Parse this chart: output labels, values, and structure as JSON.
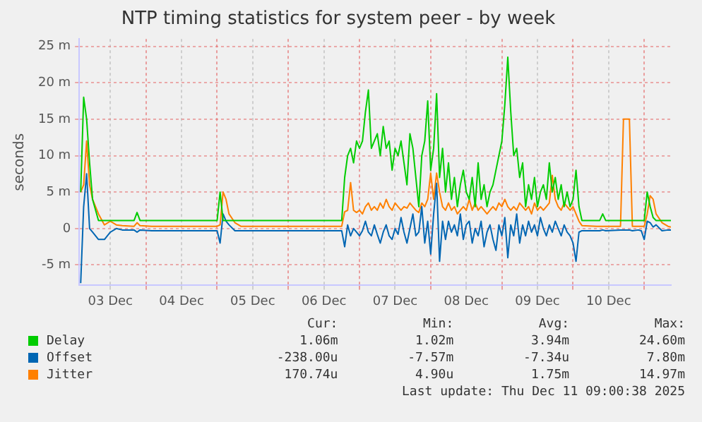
{
  "chart_data": {
    "type": "line",
    "title": "NTP timing statistics for system peer - by week",
    "ylabel": "seconds",
    "x": [
      "2025-12-03T02:00",
      "2025-12-03T03:00",
      "2025-12-03T04:00",
      "2025-12-03T05:00",
      "2025-12-03T06:00",
      "2025-12-03T08:00",
      "2025-12-03T10:00",
      "2025-12-03T12:00",
      "2025-12-03T14:00",
      "2025-12-03T16:00",
      "2025-12-03T20:00",
      "2025-12-03T21:00",
      "2025-12-03T22:00",
      "2025-12-04T02:00",
      "2025-12-04T06:00",
      "2025-12-04T12:00",
      "2025-12-04T18:00",
      "2025-12-05T00:00",
      "2025-12-05T01:00",
      "2025-12-05T02:00",
      "2025-12-05T03:00",
      "2025-12-05T04:00",
      "2025-12-05T06:00",
      "2025-12-05T08:00",
      "2025-12-05T12:00",
      "2025-12-05T18:00",
      "2025-12-06T00:00",
      "2025-12-06T06:00",
      "2025-12-06T12:00",
      "2025-12-06T18:00",
      "2025-12-06T19:00",
      "2025-12-06T20:00",
      "2025-12-06T21:00",
      "2025-12-06T22:00",
      "2025-12-06T23:00",
      "2025-12-07T00:00",
      "2025-12-07T01:00",
      "2025-12-07T02:00",
      "2025-12-07T03:00",
      "2025-12-07T04:00",
      "2025-12-07T05:00",
      "2025-12-07T06:00",
      "2025-12-07T07:00",
      "2025-12-07T08:00",
      "2025-12-07T09:00",
      "2025-12-07T10:00",
      "2025-12-07T11:00",
      "2025-12-07T12:00",
      "2025-12-07T13:00",
      "2025-12-07T14:00",
      "2025-12-07T15:00",
      "2025-12-07T16:00",
      "2025-12-07T17:00",
      "2025-12-07T18:00",
      "2025-12-07T19:00",
      "2025-12-07T20:00",
      "2025-12-07T21:00",
      "2025-12-07T22:00",
      "2025-12-07T23:00",
      "2025-12-08T00:00",
      "2025-12-08T01:00",
      "2025-12-08T02:00",
      "2025-12-08T03:00",
      "2025-12-08T04:00",
      "2025-12-08T05:00",
      "2025-12-08T06:00",
      "2025-12-08T07:00",
      "2025-12-08T08:00",
      "2025-12-08T09:00",
      "2025-12-08T10:00",
      "2025-12-08T11:00",
      "2025-12-08T12:00",
      "2025-12-08T13:00",
      "2025-12-08T14:00",
      "2025-12-08T15:00",
      "2025-12-08T16:00",
      "2025-12-08T17:00",
      "2025-12-08T18:00",
      "2025-12-08T19:00",
      "2025-12-08T20:00",
      "2025-12-08T21:00",
      "2025-12-08T22:00",
      "2025-12-08T23:00",
      "2025-12-09T00:00",
      "2025-12-09T01:00",
      "2025-12-09T02:00",
      "2025-12-09T03:00",
      "2025-12-09T04:00",
      "2025-12-09T05:00",
      "2025-12-09T06:00",
      "2025-12-09T07:00",
      "2025-12-09T08:00",
      "2025-12-09T09:00",
      "2025-12-09T10:00",
      "2025-12-09T11:00",
      "2025-12-09T12:00",
      "2025-12-09T13:00",
      "2025-12-09T14:00",
      "2025-12-09T15:00",
      "2025-12-09T16:00",
      "2025-12-09T17:00",
      "2025-12-09T18:00",
      "2025-12-09T19:00",
      "2025-12-09T20:00",
      "2025-12-09T21:00",
      "2025-12-09T22:00",
      "2025-12-09T23:00",
      "2025-12-10T00:00",
      "2025-12-10T01:00",
      "2025-12-10T02:00",
      "2025-12-10T03:00",
      "2025-12-10T08:00",
      "2025-12-10T09:00",
      "2025-12-10T10:00",
      "2025-12-10T11:00",
      "2025-12-10T16:00",
      "2025-12-10T17:00",
      "2025-12-10T18:00",
      "2025-12-10T19:00",
      "2025-12-10T20:00",
      "2025-12-10T22:00",
      "2025-12-10T23:00",
      "2025-12-11T00:00",
      "2025-12-11T01:00",
      "2025-12-11T02:00",
      "2025-12-11T03:00",
      "2025-12-11T04:00",
      "2025-12-11T06:00",
      "2025-12-11T08:00",
      "2025-12-11T09:00"
    ],
    "series": [
      {
        "name": "Delay",
        "color": "#00cc00",
        "values": [
          5,
          18,
          15,
          9,
          4,
          1.1,
          1.1,
          1.1,
          1.1,
          1.1,
          1.1,
          2.2,
          1.1,
          1.1,
          1.1,
          1.1,
          1.1,
          1.1,
          5,
          1.1,
          1.1,
          1.1,
          1.1,
          1.1,
          1.1,
          1.1,
          1.1,
          1.1,
          1.1,
          1.1,
          7,
          10,
          11,
          9,
          12,
          11,
          12,
          16,
          19,
          11,
          12,
          13,
          10,
          14,
          11,
          12,
          8,
          11,
          10,
          12,
          9,
          6,
          13,
          11,
          7,
          3,
          10,
          12,
          17.5,
          8,
          11,
          18.5,
          7,
          11,
          5,
          9,
          4,
          7,
          3,
          6,
          8,
          5,
          4,
          7,
          3,
          9,
          4,
          6,
          3,
          5,
          6,
          8,
          10,
          12,
          17,
          23.5,
          16,
          10,
          11,
          7,
          9,
          3,
          6,
          4,
          7,
          3,
          5,
          6,
          4,
          9,
          5,
          7,
          4,
          6,
          3,
          5,
          3,
          4,
          8,
          3,
          1.1,
          1.1,
          1.1,
          2,
          1.1,
          1.1,
          1.1,
          1.1,
          1.1,
          1.1,
          1.1,
          1.1,
          1.1,
          5,
          3,
          1.5,
          1.1,
          1.1,
          1.1,
          1.1
        ]
      },
      {
        "name": "Offset",
        "color": "#0066b3",
        "values": [
          -7.5,
          3,
          7.5,
          0,
          -0.5,
          -1.5,
          -1.5,
          -0.5,
          0,
          -0.2,
          -0.2,
          -0.5,
          -0.2,
          -0.3,
          -0.3,
          -0.3,
          -0.3,
          -0.3,
          -2,
          2,
          1,
          0.5,
          -0.3,
          -0.3,
          -0.3,
          -0.3,
          -0.3,
          -0.3,
          -0.3,
          -0.3,
          -2.5,
          0.5,
          -1,
          0,
          -0.5,
          -1,
          -0.3,
          1,
          -0.5,
          -1,
          0.5,
          -0.8,
          -2,
          -0.5,
          0.5,
          -1,
          -1.5,
          0,
          -0.8,
          1.5,
          -0.5,
          -2,
          0,
          2,
          -1,
          -0.5,
          3,
          -2,
          1,
          -3.5,
          2,
          6.2,
          -4.5,
          1,
          -1.5,
          1,
          -0.5,
          0.5,
          -1,
          2,
          -1.5,
          0.5,
          1,
          -2,
          0,
          -1,
          1,
          -2.5,
          -0.5,
          0.5,
          -1.5,
          -3,
          0.5,
          -1,
          1.5,
          -4,
          0.5,
          -1,
          2,
          -2,
          0.5,
          -1,
          1,
          -0.5,
          0.5,
          -1,
          1.5,
          0,
          -1,
          0.5,
          -0.5,
          1,
          0,
          -1,
          0.5,
          -0.5,
          -1,
          -2,
          -4.5,
          -0.5,
          -0.3,
          -0.3,
          -0.3,
          -0.2,
          -0.3,
          -0.2,
          -0.2,
          -0.2,
          -0.2,
          -0.3,
          -0.2,
          -0.3,
          -1.5,
          1,
          0.8,
          0.2,
          0.5,
          -0.3,
          -0.2,
          -0.2
        ]
      },
      {
        "name": "Jitter",
        "color": "#ff8000",
        "values": [
          5,
          6,
          12,
          6,
          4,
          2,
          0.5,
          1,
          0.5,
          0.4,
          0.3,
          0.8,
          0.4,
          0.3,
          0.3,
          0.3,
          0.3,
          0.3,
          0.5,
          5,
          4,
          2,
          0.8,
          0.3,
          0.3,
          0.3,
          0.3,
          0.3,
          0.3,
          0.3,
          2.3,
          2.5,
          6.3,
          2.5,
          2.2,
          2.5,
          2,
          3,
          3.5,
          2.5,
          3,
          2.5,
          3.5,
          2.8,
          4,
          3,
          2.5,
          3.5,
          3,
          2.5,
          3,
          2.8,
          3.5,
          3,
          2.5,
          2.2,
          3.5,
          3,
          4,
          7.6,
          4,
          7.6,
          5,
          3,
          2.5,
          3.5,
          2.5,
          3,
          2,
          2.5,
          3,
          2.5,
          4,
          2.5,
          3.5,
          2.5,
          3,
          2.5,
          2,
          2.5,
          3,
          2.5,
          3.5,
          3,
          4,
          3,
          2.5,
          3,
          2.5,
          3.5,
          3,
          2.5,
          3,
          2,
          3.5,
          2.5,
          3,
          2.5,
          3,
          3.5,
          7.3,
          4,
          3,
          2.5,
          3.5,
          3,
          2.5,
          3,
          2,
          1,
          0.4,
          0.3,
          0.3,
          0.3,
          0.3,
          0.3,
          15,
          15,
          15,
          0.3,
          0.3,
          0.3,
          0.3,
          2,
          4.5,
          4,
          2,
          0.8,
          0.3,
          0.2
        ]
      }
    ],
    "xlim": [
      "2025-12-03T01:30",
      "2025-12-11T09:00"
    ],
    "xticks": [
      {
        "value": "2025-12-03T12:00",
        "label": "03 Dec"
      },
      {
        "value": "2025-12-04T00:00",
        "label": null
      },
      {
        "value": "2025-12-04T12:00",
        "label": "04 Dec"
      },
      {
        "value": "2025-12-05T00:00",
        "label": null
      },
      {
        "value": "2025-12-05T12:00",
        "label": "05 Dec"
      },
      {
        "value": "2025-12-06T00:00",
        "label": null
      },
      {
        "value": "2025-12-06T12:00",
        "label": "06 Dec"
      },
      {
        "value": "2025-12-07T00:00",
        "label": null
      },
      {
        "value": "2025-12-07T12:00",
        "label": "07 Dec"
      },
      {
        "value": "2025-12-08T00:00",
        "label": null
      },
      {
        "value": "2025-12-08T12:00",
        "label": "08 Dec"
      },
      {
        "value": "2025-12-09T00:00",
        "label": null
      },
      {
        "value": "2025-12-09T12:00",
        "label": "09 Dec"
      },
      {
        "value": "2025-12-10T00:00",
        "label": null
      },
      {
        "value": "2025-12-10T12:00",
        "label": "10 Dec"
      },
      {
        "value": "2025-12-11T00:00",
        "label": null
      }
    ],
    "ylim": [
      -7.8,
      26
    ],
    "yticks": [
      {
        "value": -5,
        "label": "-5 m"
      },
      {
        "value": 0,
        "label": "0"
      },
      {
        "value": 5,
        "label": "5 m"
      },
      {
        "value": 10,
        "label": "10 m"
      },
      {
        "value": 15,
        "label": "15 m"
      },
      {
        "value": 20,
        "label": "20 m"
      },
      {
        "value": 25,
        "label": "25 m"
      }
    ],
    "grid": true,
    "legend": "bottom",
    "marker": "none",
    "line_style": "solid",
    "annotations": [
      "Cur:",
      "Min:",
      "Avg:",
      "Max:",
      "1.06m",
      "1.02m",
      "3.94m",
      "24.60m",
      "-238.00u",
      "-7.57m",
      "-7.34u",
      "7.80m",
      "170.74u",
      "4.90u",
      "1.75m",
      "14.97m",
      "Last update: Thu Dec 11 09:00:38 2025"
    ]
  }
}
